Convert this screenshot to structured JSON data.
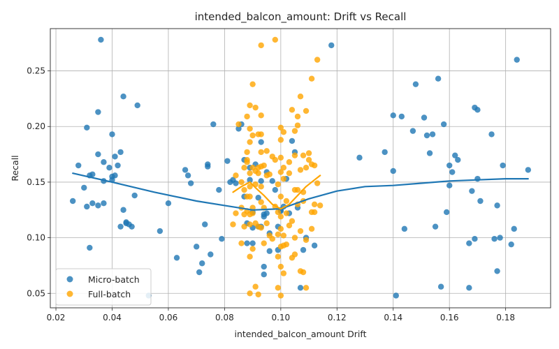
{
  "chart_data": {
    "type": "scatter",
    "title": "intended_balcon_amount: Drift vs Recall",
    "xlabel": "intended_balcon_amount Drift",
    "ylabel": "Recall",
    "xlim": [
      0.018,
      0.196
    ],
    "ylim": [
      0.037,
      0.288
    ],
    "xticks": [
      0.02,
      0.04,
      0.06,
      0.08,
      0.1,
      0.12,
      0.14,
      0.16,
      0.18
    ],
    "xtick_labels": [
      "0.02",
      "0.04",
      "0.06",
      "0.08",
      "0.10",
      "0.12",
      "0.14",
      "0.16",
      "0.18"
    ],
    "yticks": [
      0.05,
      0.1,
      0.15,
      0.2,
      0.25
    ],
    "ytick_labels": [
      "0.05",
      "0.10",
      "0.15",
      "0.20",
      "0.25"
    ],
    "grid": true,
    "legend_position": "lower-left",
    "series": [
      {
        "name": "Micro-batch",
        "color": "#1f77b4",
        "points": [
          [
            0.026,
            0.133
          ],
          [
            0.028,
            0.165
          ],
          [
            0.03,
            0.145
          ],
          [
            0.031,
            0.199
          ],
          [
            0.031,
            0.128
          ],
          [
            0.032,
            0.091
          ],
          [
            0.032,
            0.156
          ],
          [
            0.033,
            0.157
          ],
          [
            0.033,
            0.131
          ],
          [
            0.035,
            0.175
          ],
          [
            0.035,
            0.213
          ],
          [
            0.035,
            0.129
          ],
          [
            0.036,
            0.278
          ],
          [
            0.037,
            0.168
          ],
          [
            0.037,
            0.151
          ],
          [
            0.037,
            0.131
          ],
          [
            0.039,
            0.163
          ],
          [
            0.04,
            0.193
          ],
          [
            0.04,
            0.155
          ],
          [
            0.04,
            0.152
          ],
          [
            0.041,
            0.173
          ],
          [
            0.041,
            0.156
          ],
          [
            0.042,
            0.165
          ],
          [
            0.043,
            0.177
          ],
          [
            0.043,
            0.11
          ],
          [
            0.044,
            0.125
          ],
          [
            0.044,
            0.227
          ],
          [
            0.045,
            0.114
          ],
          [
            0.045,
            0.113
          ],
          [
            0.046,
            0.112
          ],
          [
            0.047,
            0.11
          ],
          [
            0.048,
            0.138
          ],
          [
            0.049,
            0.219
          ],
          [
            0.053,
            0.048
          ],
          [
            0.057,
            0.106
          ],
          [
            0.06,
            0.131
          ],
          [
            0.063,
            0.082
          ],
          [
            0.066,
            0.161
          ],
          [
            0.067,
            0.156
          ],
          [
            0.068,
            0.149
          ],
          [
            0.07,
            0.092
          ],
          [
            0.071,
            0.069
          ],
          [
            0.072,
            0.077
          ],
          [
            0.073,
            0.112
          ],
          [
            0.074,
            0.164
          ],
          [
            0.074,
            0.166
          ],
          [
            0.075,
            0.085
          ],
          [
            0.076,
            0.202
          ],
          [
            0.078,
            0.143
          ],
          [
            0.079,
            0.099
          ],
          [
            0.081,
            0.169
          ],
          [
            0.082,
            0.15
          ],
          [
            0.083,
            0.152
          ],
          [
            0.084,
            0.149
          ],
          [
            0.085,
            0.198
          ],
          [
            0.086,
            0.202
          ],
          [
            0.087,
            0.137
          ],
          [
            0.087,
            0.17
          ],
          [
            0.088,
            0.095
          ],
          [
            0.088,
            0.113
          ],
          [
            0.089,
            0.163
          ],
          [
            0.089,
            0.152
          ],
          [
            0.09,
            0.109
          ],
          [
            0.09,
            0.095
          ],
          [
            0.09,
            0.123
          ],
          [
            0.091,
            0.166
          ],
          [
            0.092,
            0.136
          ],
          [
            0.092,
            0.11
          ],
          [
            0.093,
            0.186
          ],
          [
            0.093,
            0.151
          ],
          [
            0.093,
            0.11
          ],
          [
            0.094,
            0.067
          ],
          [
            0.094,
            0.074
          ],
          [
            0.094,
            0.121
          ],
          [
            0.094,
            0.119
          ],
          [
            0.095,
            0.159
          ],
          [
            0.095,
            0.122
          ],
          [
            0.096,
            0.104
          ],
          [
            0.096,
            0.088
          ],
          [
            0.097,
            0.151
          ],
          [
            0.098,
            0.143
          ],
          [
            0.099,
            0.11
          ],
          [
            0.099,
            0.089
          ],
          [
            0.1,
            0.124
          ],
          [
            0.1,
            0.125
          ],
          [
            0.101,
            0.128
          ],
          [
            0.102,
            0.153
          ],
          [
            0.103,
            0.122
          ],
          [
            0.104,
            0.187
          ],
          [
            0.105,
            0.177
          ],
          [
            0.106,
            0.127
          ],
          [
            0.107,
            0.055
          ],
          [
            0.108,
            0.089
          ],
          [
            0.109,
            0.1
          ],
          [
            0.112,
            0.093
          ],
          [
            0.118,
            0.273
          ],
          [
            0.128,
            0.172
          ],
          [
            0.137,
            0.177
          ],
          [
            0.14,
            0.16
          ],
          [
            0.14,
            0.21
          ],
          [
            0.141,
            0.048
          ],
          [
            0.143,
            0.209
          ],
          [
            0.144,
            0.108
          ],
          [
            0.147,
            0.196
          ],
          [
            0.148,
            0.238
          ],
          [
            0.151,
            0.208
          ],
          [
            0.152,
            0.192
          ],
          [
            0.153,
            0.176
          ],
          [
            0.154,
            0.193
          ],
          [
            0.155,
            0.11
          ],
          [
            0.156,
            0.243
          ],
          [
            0.157,
            0.056
          ],
          [
            0.158,
            0.202
          ],
          [
            0.159,
            0.123
          ],
          [
            0.16,
            0.165
          ],
          [
            0.16,
            0.147
          ],
          [
            0.161,
            0.159
          ],
          [
            0.162,
            0.174
          ],
          [
            0.163,
            0.17
          ],
          [
            0.167,
            0.055
          ],
          [
            0.167,
            0.095
          ],
          [
            0.168,
            0.142
          ],
          [
            0.169,
            0.099
          ],
          [
            0.169,
            0.217
          ],
          [
            0.17,
            0.153
          ],
          [
            0.17,
            0.215
          ],
          [
            0.171,
            0.133
          ],
          [
            0.175,
            0.193
          ],
          [
            0.176,
            0.099
          ],
          [
            0.177,
            0.07
          ],
          [
            0.177,
            0.129
          ],
          [
            0.178,
            0.1
          ],
          [
            0.179,
            0.165
          ],
          [
            0.182,
            0.094
          ],
          [
            0.183,
            0.108
          ],
          [
            0.184,
            0.26
          ],
          [
            0.188,
            0.161
          ]
        ],
        "trend": [
          [
            0.026,
            0.158
          ],
          [
            0.04,
            0.15
          ],
          [
            0.055,
            0.141
          ],
          [
            0.07,
            0.133
          ],
          [
            0.08,
            0.129
          ],
          [
            0.09,
            0.125
          ],
          [
            0.1,
            0.126
          ],
          [
            0.11,
            0.135
          ],
          [
            0.12,
            0.142
          ],
          [
            0.13,
            0.146
          ],
          [
            0.14,
            0.147
          ],
          [
            0.15,
            0.149
          ],
          [
            0.16,
            0.151
          ],
          [
            0.17,
            0.152
          ],
          [
            0.18,
            0.153
          ],
          [
            0.188,
            0.153
          ]
        ]
      },
      {
        "name": "Full-batch",
        "color": "#ffa500",
        "points": [
          [
            0.083,
            0.112
          ],
          [
            0.084,
            0.122
          ],
          [
            0.084,
            0.156
          ],
          [
            0.085,
            0.202
          ],
          [
            0.086,
            0.095
          ],
          [
            0.086,
            0.127
          ],
          [
            0.086,
            0.15
          ],
          [
            0.087,
            0.143
          ],
          [
            0.087,
            0.121
          ],
          [
            0.087,
            0.163
          ],
          [
            0.087,
            0.11
          ],
          [
            0.088,
            0.177
          ],
          [
            0.088,
            0.209
          ],
          [
            0.088,
            0.137
          ],
          [
            0.088,
            0.168
          ],
          [
            0.088,
            0.124
          ],
          [
            0.088,
            0.17
          ],
          [
            0.089,
            0.219
          ],
          [
            0.089,
            0.198
          ],
          [
            0.089,
            0.186
          ],
          [
            0.089,
            0.158
          ],
          [
            0.089,
            0.146
          ],
          [
            0.089,
            0.137
          ],
          [
            0.089,
            0.112
          ],
          [
            0.089,
            0.121
          ],
          [
            0.089,
            0.083
          ],
          [
            0.089,
            0.05
          ],
          [
            0.09,
            0.238
          ],
          [
            0.09,
            0.192
          ],
          [
            0.09,
            0.163
          ],
          [
            0.09,
            0.127
          ],
          [
            0.09,
            0.09
          ],
          [
            0.09,
            0.122
          ],
          [
            0.091,
            0.217
          ],
          [
            0.091,
            0.148
          ],
          [
            0.091,
            0.113
          ],
          [
            0.091,
            0.16
          ],
          [
            0.091,
            0.056
          ],
          [
            0.092,
            0.193
          ],
          [
            0.092,
            0.158
          ],
          [
            0.092,
            0.163
          ],
          [
            0.092,
            0.11
          ],
          [
            0.092,
            0.049
          ],
          [
            0.093,
            0.273
          ],
          [
            0.093,
            0.21
          ],
          [
            0.093,
            0.193
          ],
          [
            0.093,
            0.177
          ],
          [
            0.093,
            0.164
          ],
          [
            0.093,
            0.146
          ],
          [
            0.093,
            0.132
          ],
          [
            0.093,
            0.109
          ],
          [
            0.094,
            0.165
          ],
          [
            0.094,
            0.127
          ],
          [
            0.094,
            0.095
          ],
          [
            0.095,
            0.178
          ],
          [
            0.095,
            0.156
          ],
          [
            0.095,
            0.113
          ],
          [
            0.096,
            0.157
          ],
          [
            0.096,
            0.102
          ],
          [
            0.097,
            0.173
          ],
          [
            0.097,
            0.099
          ],
          [
            0.098,
            0.278
          ],
          [
            0.098,
            0.17
          ],
          [
            0.098,
            0.128
          ],
          [
            0.099,
            0.055
          ],
          [
            0.099,
            0.083
          ],
          [
            0.099,
            0.103
          ],
          [
            0.099,
            0.123
          ],
          [
            0.099,
            0.148
          ],
          [
            0.1,
            0.199
          ],
          [
            0.1,
            0.188
          ],
          [
            0.1,
            0.172
          ],
          [
            0.1,
            0.159
          ],
          [
            0.1,
            0.137
          ],
          [
            0.1,
            0.119
          ],
          [
            0.1,
            0.108
          ],
          [
            0.1,
            0.092
          ],
          [
            0.1,
            0.074
          ],
          [
            0.1,
            0.048
          ],
          [
            0.101,
            0.195
          ],
          [
            0.101,
            0.163
          ],
          [
            0.101,
            0.153
          ],
          [
            0.101,
            0.102
          ],
          [
            0.101,
            0.093
          ],
          [
            0.101,
            0.068
          ],
          [
            0.102,
            0.133
          ],
          [
            0.102,
            0.122
          ],
          [
            0.102,
            0.094
          ],
          [
            0.103,
            0.158
          ],
          [
            0.103,
            0.111
          ],
          [
            0.103,
            0.168
          ],
          [
            0.104,
            0.215
          ],
          [
            0.104,
            0.115
          ],
          [
            0.104,
            0.082
          ],
          [
            0.105,
            0.196
          ],
          [
            0.105,
            0.174
          ],
          [
            0.105,
            0.143
          ],
          [
            0.105,
            0.1
          ],
          [
            0.105,
            0.085
          ],
          [
            0.106,
            0.201
          ],
          [
            0.106,
            0.209
          ],
          [
            0.106,
            0.143
          ],
          [
            0.106,
            0.13
          ],
          [
            0.107,
            0.227
          ],
          [
            0.107,
            0.161
          ],
          [
            0.107,
            0.106
          ],
          [
            0.107,
            0.07
          ],
          [
            0.108,
            0.174
          ],
          [
            0.108,
            0.141
          ],
          [
            0.108,
            0.133
          ],
          [
            0.108,
            0.069
          ],
          [
            0.109,
            0.214
          ],
          [
            0.109,
            0.163
          ],
          [
            0.109,
            0.098
          ],
          [
            0.109,
            0.055
          ],
          [
            0.11,
            0.176
          ],
          [
            0.11,
            0.17
          ],
          [
            0.111,
            0.243
          ],
          [
            0.111,
            0.166
          ],
          [
            0.111,
            0.123
          ],
          [
            0.111,
            0.108
          ],
          [
            0.112,
            0.165
          ],
          [
            0.112,
            0.13
          ],
          [
            0.112,
            0.123
          ],
          [
            0.113,
            0.26
          ],
          [
            0.113,
            0.149
          ],
          [
            0.114,
            0.129
          ]
        ],
        "trend": [
          [
            0.083,
            0.141
          ],
          [
            0.086,
            0.146
          ],
          [
            0.089,
            0.15
          ],
          [
            0.091,
            0.145
          ],
          [
            0.094,
            0.138
          ],
          [
            0.097,
            0.13
          ],
          [
            0.1,
            0.126
          ],
          [
            0.103,
            0.13
          ],
          [
            0.106,
            0.138
          ],
          [
            0.109,
            0.146
          ],
          [
            0.112,
            0.152
          ],
          [
            0.114,
            0.156
          ]
        ]
      }
    ]
  }
}
